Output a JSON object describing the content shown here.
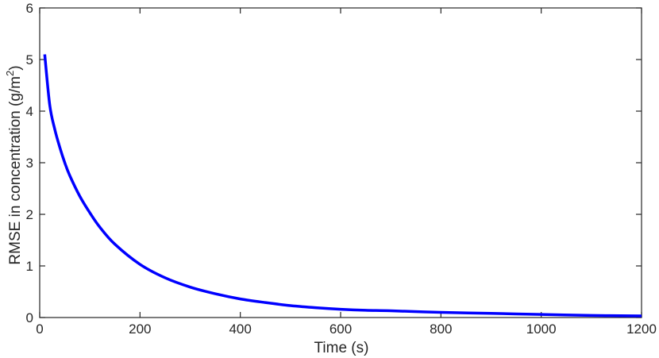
{
  "chart_data": {
    "type": "line",
    "title": "",
    "xlabel": "Time (s)",
    "ylabel": {
      "main": "RMSE in concentration (g/m",
      "superscript": "2",
      "close": ")"
    },
    "xlim": [
      0,
      1200
    ],
    "ylim": [
      0,
      6
    ],
    "xticks": [
      "0",
      "200",
      "400",
      "600",
      "800",
      "1000",
      "1200"
    ],
    "yticks": [
      "0",
      "1",
      "2",
      "3",
      "4",
      "5",
      "6"
    ],
    "grid": false,
    "legend": "none",
    "series": [
      {
        "color": "#0000ff",
        "x": [
          10,
          20,
          30,
          40,
          50,
          60,
          80,
          100,
          120,
          150,
          200,
          250,
          300,
          350,
          400,
          450,
          500,
          550,
          600,
          650,
          700,
          800,
          900,
          1000,
          1100,
          1200
        ],
        "y": [
          5.1,
          4.12,
          3.65,
          3.3,
          3.0,
          2.75,
          2.35,
          2.03,
          1.75,
          1.42,
          1.03,
          0.77,
          0.59,
          0.46,
          0.36,
          0.29,
          0.23,
          0.19,
          0.16,
          0.14,
          0.13,
          0.1,
          0.08,
          0.06,
          0.04,
          0.03
        ]
      }
    ]
  }
}
